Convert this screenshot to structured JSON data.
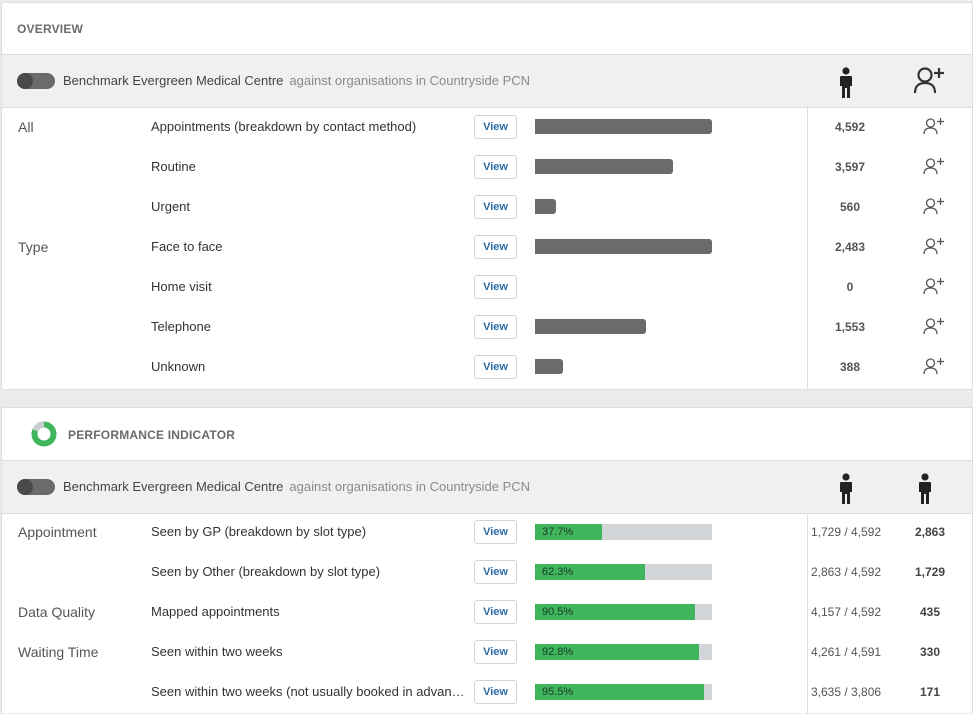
{
  "overview": {
    "title": "OVERVIEW",
    "org": "Benchmark Evergreen Medical Centre",
    "comparison": "against organisations in Countryside PCN",
    "view_label": "View",
    "rows": [
      {
        "group": "All",
        "label": "Appointments (breakdown by contact method)",
        "bar_fraction": 1.0,
        "value": "4,592"
      },
      {
        "group": "",
        "label": "Routine",
        "bar_fraction": 0.78,
        "value": "3,597"
      },
      {
        "group": "",
        "label": "Urgent",
        "bar_fraction": 0.12,
        "value": "560"
      },
      {
        "group": "Type",
        "label": "Face to face",
        "bar_fraction": 1.0,
        "value": "2,483"
      },
      {
        "group": "",
        "label": "Home visit",
        "bar_fraction": 0.0,
        "value": "0"
      },
      {
        "group": "",
        "label": "Telephone",
        "bar_fraction": 0.625,
        "value": "1,553"
      },
      {
        "group": "",
        "label": "Unknown",
        "bar_fraction": 0.156,
        "value": "388"
      }
    ]
  },
  "performance": {
    "title": "PERFORMANCE INDICATOR",
    "org": "Benchmark Evergreen Medical Centre",
    "comparison": "against organisations in Countryside PCN",
    "view_label": "View",
    "rows": [
      {
        "group": "Appointment",
        "label": "Seen by GP (breakdown by slot type)",
        "pct_label": "37.7%",
        "pct": 37.7,
        "fraction": "1,729 / 4,592",
        "count": "2,863"
      },
      {
        "group": "",
        "label": "Seen by Other (breakdown by slot type)",
        "pct_label": "62.3%",
        "pct": 62.3,
        "fraction": "2,863 / 4,592",
        "count": "1,729"
      },
      {
        "group": "Data Quality",
        "label": "Mapped appointments",
        "pct_label": "90.5%",
        "pct": 90.5,
        "fraction": "4,157 / 4,592",
        "count": "435"
      },
      {
        "group": "Waiting Time",
        "label": "Seen within two weeks",
        "pct_label": "92.8%",
        "pct": 92.8,
        "fraction": "4,261 / 4,591",
        "count": "330"
      },
      {
        "group": "",
        "label": "Seen within two weeks (not usually booked in advan…",
        "pct_label": "95.5%",
        "pct": 95.5,
        "fraction": "3,635 / 3,806",
        "count": "171"
      }
    ]
  },
  "colors": {
    "bar_grey": "#6b6b6b",
    "progress_green": "#3fb55d",
    "progress_track": "#d3d6d9",
    "link_blue": "#2e6da4"
  },
  "icons": {
    "person": "person-icon",
    "add_person": "add-person-icon",
    "donut": "donut-icon"
  }
}
